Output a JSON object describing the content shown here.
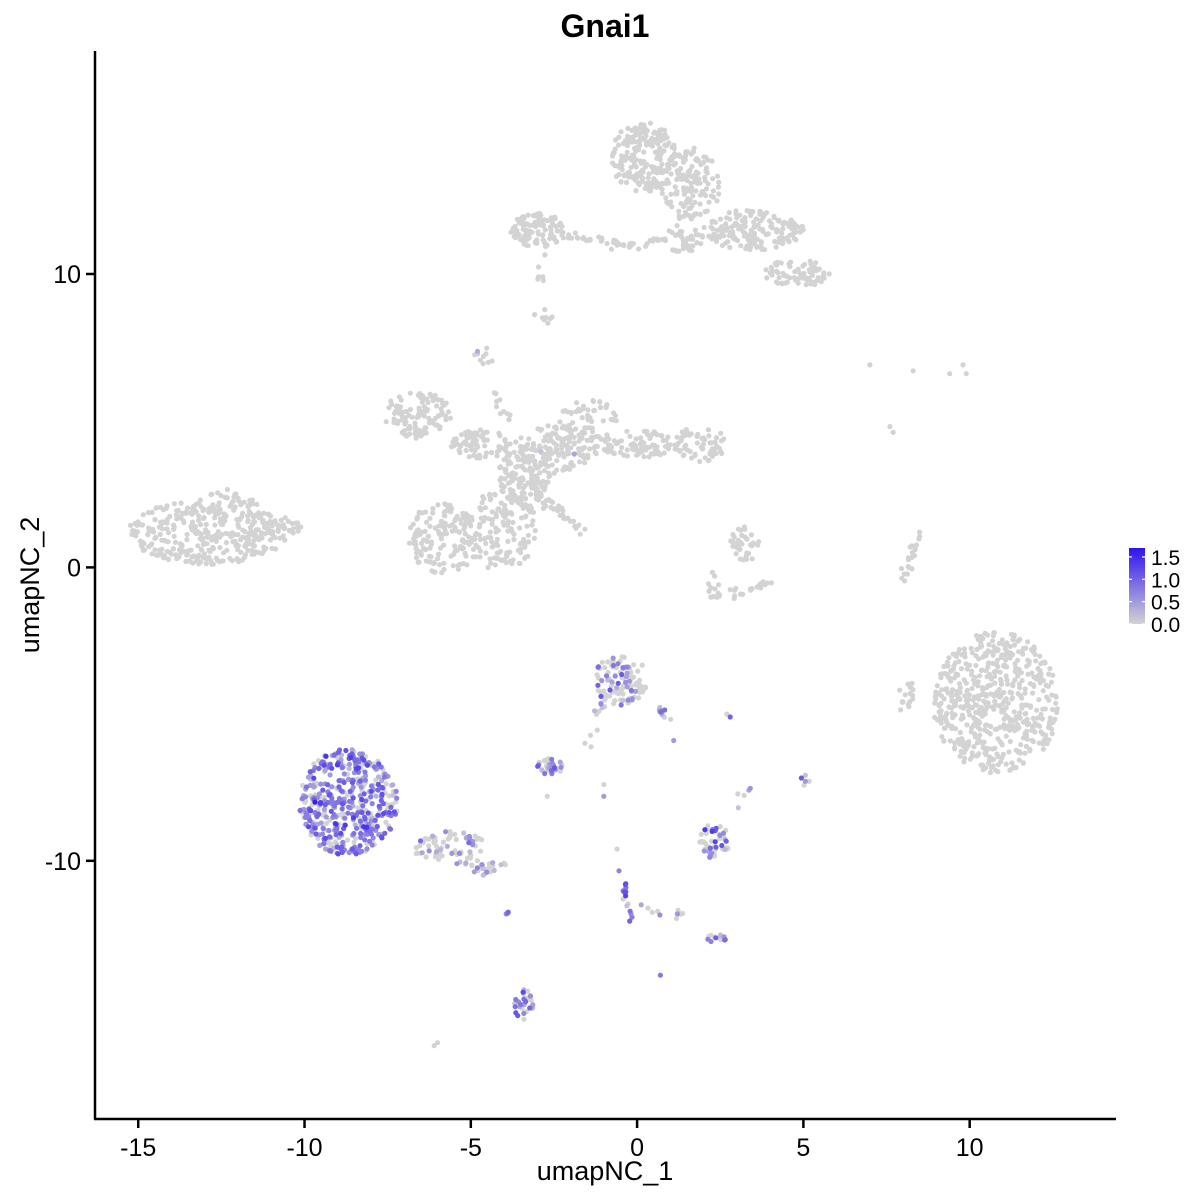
{
  "chart_data": {
    "type": "scatter",
    "title": "Gnai1",
    "xlabel": "umapNC_1",
    "ylabel": "umapNC_2",
    "xlim": [
      -16.3,
      14.4
    ],
    "ylim": [
      -18.8,
      17.6
    ],
    "xticks": [
      -15,
      -10,
      -5,
      0,
      5,
      10
    ],
    "yticks": [
      -10,
      0,
      10
    ],
    "xtick_labels": [
      "-15",
      "-10",
      "-5",
      "0",
      "5",
      "10"
    ],
    "ytick_labels": [
      "-10",
      "0",
      "10"
    ],
    "grid": false,
    "legend_position": "right",
    "color_scale": {
      "low_color": "#d3d3d3",
      "high_color": "#2e14f0",
      "min": 0.0,
      "max": 1.7,
      "ticks": [
        1.5,
        1.0,
        0.5,
        0.0
      ],
      "tick_labels": [
        "1.5",
        "1.0",
        "0.5",
        "0.0"
      ]
    },
    "clusters": [
      {
        "cx": -12.9,
        "cy": 1.2,
        "rx": 2.4,
        "ry": 1.1,
        "n": 340,
        "expr": 0.0,
        "p": 0.0
      },
      {
        "cx": -12.2,
        "cy": 2.1,
        "rx": 0.8,
        "ry": 0.6,
        "n": 30,
        "expr": 0.0,
        "p": 0.0
      },
      {
        "cx": -11.0,
        "cy": 1.4,
        "rx": 0.9,
        "ry": 0.5,
        "n": 40,
        "expr": 0.0,
        "p": 0.0
      },
      {
        "cx": -5.8,
        "cy": 1.0,
        "rx": 1.1,
        "ry": 1.2,
        "n": 150,
        "expr": 0.0,
        "p": 0.0
      },
      {
        "cx": -4.1,
        "cy": 1.3,
        "rx": 1.1,
        "ry": 1.4,
        "n": 140,
        "expr": 0.0,
        "p": 0.0
      },
      {
        "cx": -3.4,
        "cy": 3.1,
        "rx": 0.8,
        "ry": 1.0,
        "n": 120,
        "expr": 0.0,
        "p": 0.0
      },
      {
        "cx": -2.4,
        "cy": 4.0,
        "rx": 1.0,
        "ry": 0.9,
        "n": 110,
        "expr": 0.0,
        "p": 0.01
      },
      {
        "cx": -1.5,
        "cy": 4.8,
        "rx": 1.0,
        "ry": 1.0,
        "n": 90,
        "expr": 0.0,
        "p": 0.0
      },
      {
        "cx": -6.6,
        "cy": 5.2,
        "rx": 1.0,
        "ry": 0.8,
        "n": 110,
        "expr": 0.0,
        "p": 0.0
      },
      {
        "cx": -4.7,
        "cy": 4.2,
        "rx": 0.9,
        "ry": 0.5,
        "n": 80,
        "expr": 0.0,
        "p": 0.0
      },
      {
        "cx": -4.6,
        "cy": 7.2,
        "rx": 0.3,
        "ry": 0.3,
        "n": 10,
        "expr": 0.3,
        "p": 0.3
      },
      {
        "cx": 0.2,
        "cy": 4.2,
        "rx": 1.3,
        "ry": 0.5,
        "n": 90,
        "expr": 0.0,
        "p": 0.0
      },
      {
        "cx": 1.9,
        "cy": 4.2,
        "rx": 0.8,
        "ry": 0.6,
        "n": 60,
        "expr": 0.0,
        "p": 0.0
      },
      {
        "cx": 0.2,
        "cy": 14.0,
        "rx": 1.0,
        "ry": 1.2,
        "n": 210,
        "expr": 0.0,
        "p": 0.0
      },
      {
        "cx": 1.6,
        "cy": 13.0,
        "rx": 0.9,
        "ry": 1.3,
        "n": 140,
        "expr": 0.0,
        "p": 0.0
      },
      {
        "cx": 3.5,
        "cy": 11.5,
        "rx": 1.5,
        "ry": 0.7,
        "n": 170,
        "expr": 0.0,
        "p": 0.0
      },
      {
        "cx": 4.8,
        "cy": 10.0,
        "rx": 1.0,
        "ry": 0.5,
        "n": 70,
        "expr": 0.0,
        "p": 0.0
      },
      {
        "cx": 1.4,
        "cy": 11.2,
        "rx": 0.6,
        "ry": 0.5,
        "n": 40,
        "expr": 0.0,
        "p": 0.0
      },
      {
        "cx": -3.0,
        "cy": 11.5,
        "rx": 0.8,
        "ry": 0.6,
        "n": 100,
        "expr": 0.0,
        "p": 0.0
      },
      {
        "cx": -2.8,
        "cy": 8.6,
        "rx": 0.3,
        "ry": 0.3,
        "n": 8,
        "expr": 0.0,
        "p": 0.0
      },
      {
        "cx": 3.3,
        "cy": 0.8,
        "rx": 0.5,
        "ry": 0.6,
        "n": 35,
        "expr": 0.0,
        "p": 0.0
      },
      {
        "cx": 10.8,
        "cy": -4.6,
        "rx": 1.9,
        "ry": 2.4,
        "n": 560,
        "expr": 0.0,
        "p": 0.0
      },
      {
        "cx": 8.1,
        "cy": -4.4,
        "rx": 0.3,
        "ry": 0.6,
        "n": 18,
        "expr": 0.0,
        "p": 0.0
      },
      {
        "cx": -8.7,
        "cy": -8.0,
        "rx": 1.5,
        "ry": 1.8,
        "n": 460,
        "expr": 0.75,
        "p": 0.72
      },
      {
        "cx": -5.6,
        "cy": -9.6,
        "rx": 1.1,
        "ry": 0.6,
        "n": 70,
        "expr": 0.45,
        "p": 0.3
      },
      {
        "cx": -4.5,
        "cy": -10.2,
        "rx": 0.6,
        "ry": 0.3,
        "n": 25,
        "expr": 0.4,
        "p": 0.25
      },
      {
        "cx": -0.5,
        "cy": -3.8,
        "rx": 0.8,
        "ry": 0.9,
        "n": 110,
        "expr": 0.7,
        "p": 0.3
      },
      {
        "cx": -2.6,
        "cy": -6.8,
        "rx": 0.4,
        "ry": 0.3,
        "n": 35,
        "expr": 0.7,
        "p": 0.6
      },
      {
        "cx": 2.3,
        "cy": -9.3,
        "rx": 0.5,
        "ry": 0.6,
        "n": 50,
        "expr": 0.7,
        "p": 0.5
      },
      {
        "cx": -3.4,
        "cy": -14.9,
        "rx": 0.3,
        "ry": 0.5,
        "n": 30,
        "expr": 0.8,
        "p": 0.65
      },
      {
        "cx": 2.4,
        "cy": -12.6,
        "rx": 0.3,
        "ry": 0.2,
        "n": 14,
        "expr": 0.7,
        "p": 0.6
      }
    ],
    "paths": [
      {
        "from": [
          -3.3,
          2.8
        ],
        "to": [
          -1.4,
          1.0
        ],
        "n": 40,
        "expr": 0.0,
        "p": 0.0
      },
      {
        "from": [
          -3.0,
          2.8
        ],
        "to": [
          -4.6,
          6.8
        ],
        "n": 22,
        "expr": 0.0,
        "p": 0.0
      },
      {
        "from": [
          -2.9,
          11.6
        ],
        "to": [
          -3.0,
          9.0
        ],
        "n": 10,
        "expr": 0.0,
        "p": 0.0
      },
      {
        "from": [
          -2.2,
          11.3
        ],
        "to": [
          -0.3,
          11.0
        ],
        "n": 30,
        "expr": 0.0,
        "p": 0.0
      },
      {
        "from": [
          -0.3,
          11.0
        ],
        "to": [
          0.8,
          11.2
        ],
        "n": 14,
        "expr": 0.0,
        "p": 0.0
      },
      {
        "from": [
          4.0,
          -0.6
        ],
        "to": [
          2.2,
          -1.0
        ],
        "n": 26,
        "expr": 0.0,
        "p": 0.0
      },
      {
        "from": [
          2.2,
          -1.0
        ],
        "to": [
          2.4,
          0.2
        ],
        "n": 10,
        "expr": 0.0,
        "p": 0.0
      },
      {
        "from": [
          8.0,
          -0.3
        ],
        "to": [
          8.5,
          1.2
        ],
        "n": 20,
        "expr": 0.0,
        "p": 0.0
      },
      {
        "from": [
          -1.5,
          -6.1
        ],
        "to": [
          -1.0,
          -4.3
        ],
        "n": 12,
        "expr": 0.4,
        "p": 0.2
      },
      {
        "from": [
          0.6,
          -4.7
        ],
        "to": [
          1.1,
          -5.5
        ],
        "n": 10,
        "expr": 0.5,
        "p": 0.3
      },
      {
        "from": [
          -0.5,
          -10.2
        ],
        "to": [
          -0.2,
          -12.1
        ],
        "n": 16,
        "expr": 0.9,
        "p": 0.7
      },
      {
        "from": [
          0.2,
          -11.6
        ],
        "to": [
          1.5,
          -12.0
        ],
        "n": 10,
        "expr": 0.7,
        "p": 0.5
      },
      {
        "from": [
          -3.9,
          -11.7
        ],
        "to": [
          -3.9,
          -11.9
        ],
        "n": 3,
        "expr": 0.6,
        "p": 0.5
      },
      {
        "from": [
          5.0,
          -7.0
        ],
        "to": [
          5.1,
          -7.6
        ],
        "n": 5,
        "expr": 0.5,
        "p": 0.4
      },
      {
        "from": [
          3.0,
          -8.0
        ],
        "to": [
          3.5,
          -7.4
        ],
        "n": 5,
        "expr": 0.3,
        "p": 0.2
      }
    ],
    "points": [
      {
        "x": 7.0,
        "y": 6.9,
        "v": 0.0
      },
      {
        "x": 8.3,
        "y": 6.7,
        "v": 0.0
      },
      {
        "x": 9.4,
        "y": 6.6,
        "v": 0.0
      },
      {
        "x": 9.8,
        "y": 6.9,
        "v": 0.0
      },
      {
        "x": 9.9,
        "y": 6.6,
        "v": 0.0
      },
      {
        "x": 7.6,
        "y": 4.8,
        "v": 0.0
      },
      {
        "x": 7.7,
        "y": 4.6,
        "v": 0.0
      },
      {
        "x": -6.0,
        "y": -16.2,
        "v": 0.0
      },
      {
        "x": -6.1,
        "y": -16.3,
        "v": 0.0
      },
      {
        "x": 0.7,
        "y": -13.9,
        "v": 0.8
      },
      {
        "x": 2.8,
        "y": -5.1,
        "v": 1.0
      },
      {
        "x": 2.7,
        "y": -5.0,
        "v": 0.0
      },
      {
        "x": -1.0,
        "y": -7.4,
        "v": 0.0
      },
      {
        "x": -1.0,
        "y": -7.8,
        "v": 0.5
      },
      {
        "x": -0.6,
        "y": -9.6,
        "v": 0.0
      },
      {
        "x": -2.7,
        "y": -7.8,
        "v": 0.0
      },
      {
        "x": 1.1,
        "y": -5.9,
        "v": 0.5
      }
    ]
  }
}
